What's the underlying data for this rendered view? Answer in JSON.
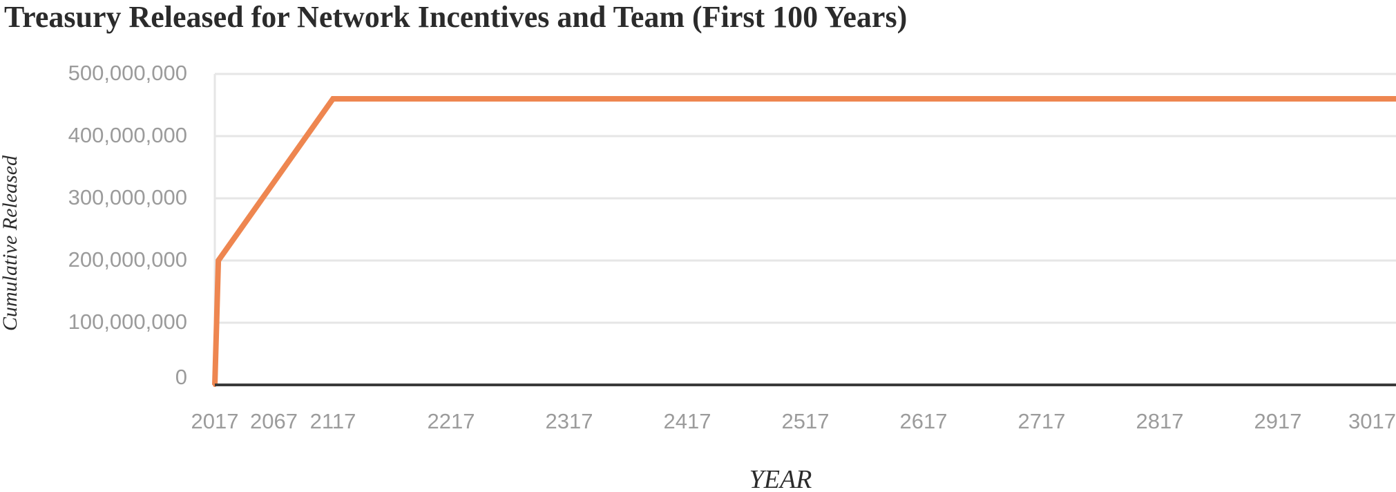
{
  "chart_data": {
    "type": "line",
    "title": "Treasury Released for Network Incentives and Team (First 100 Years)",
    "xlabel": "YEAR",
    "ylabel": "Cumulative Released",
    "xlim": [
      2017,
      3017
    ],
    "ylim": [
      0,
      500000000
    ],
    "x_ticks": [
      2017,
      2067,
      2117,
      2217,
      2317,
      2417,
      2517,
      2617,
      2717,
      2817,
      2917,
      3017
    ],
    "x_tick_labels": [
      "2017",
      "2067",
      "2117",
      "2217",
      "2317",
      "2417",
      "2517",
      "2617",
      "2717",
      "2817",
      "2917",
      "3017"
    ],
    "y_ticks": [
      0,
      100000000,
      200000000,
      300000000,
      400000000,
      500000000
    ],
    "y_tick_labels": [
      "0",
      "100,000,000",
      "200,000,000",
      "300,000,000",
      "400,000,000",
      "500,000,000"
    ],
    "grid": true,
    "series": [
      {
        "color": "#EE8650",
        "x": [
          2017,
          2020,
          2117,
          3017
        ],
        "y": [
          0,
          200000000,
          460000000,
          460000000
        ]
      }
    ]
  }
}
